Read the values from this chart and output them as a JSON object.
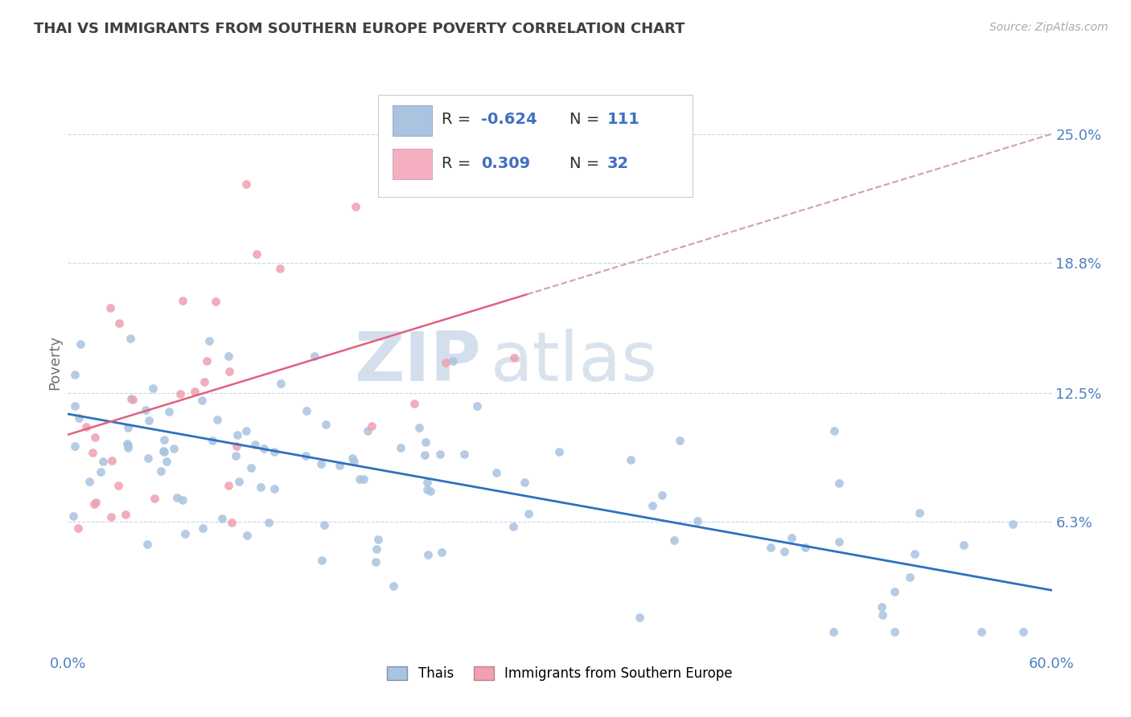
{
  "title": "THAI VS IMMIGRANTS FROM SOUTHERN EUROPE POVERTY CORRELATION CHART",
  "source": "Source: ZipAtlas.com",
  "ylabel": "Poverty",
  "yticks": [
    0.063,
    0.125,
    0.188,
    0.25
  ],
  "ytick_labels": [
    "6.3%",
    "12.5%",
    "18.8%",
    "25.0%"
  ],
  "xlim": [
    0.0,
    0.6
  ],
  "ylim": [
    0.0,
    0.28
  ],
  "thai_color": "#a8c4e0",
  "se_color": "#f0a0b0",
  "thai_line_color": "#3070c0",
  "se_line_color": "#e06080",
  "se_line_dashed_color": "#d0a0b0",
  "background_color": "#ffffff",
  "grid_color": "#c8d8e8",
  "title_color": "#404040",
  "axis_tick_color": "#5080c0",
  "legend_text_color_label": "#303030",
  "legend_text_color_value": "#4070c0",
  "legend_box_color": "#aac4e0",
  "legend_box_color2": "#f4b0c0",
  "watermark_zip_color": "#d0dcec",
  "watermark_atlas_color": "#c8d8e8"
}
